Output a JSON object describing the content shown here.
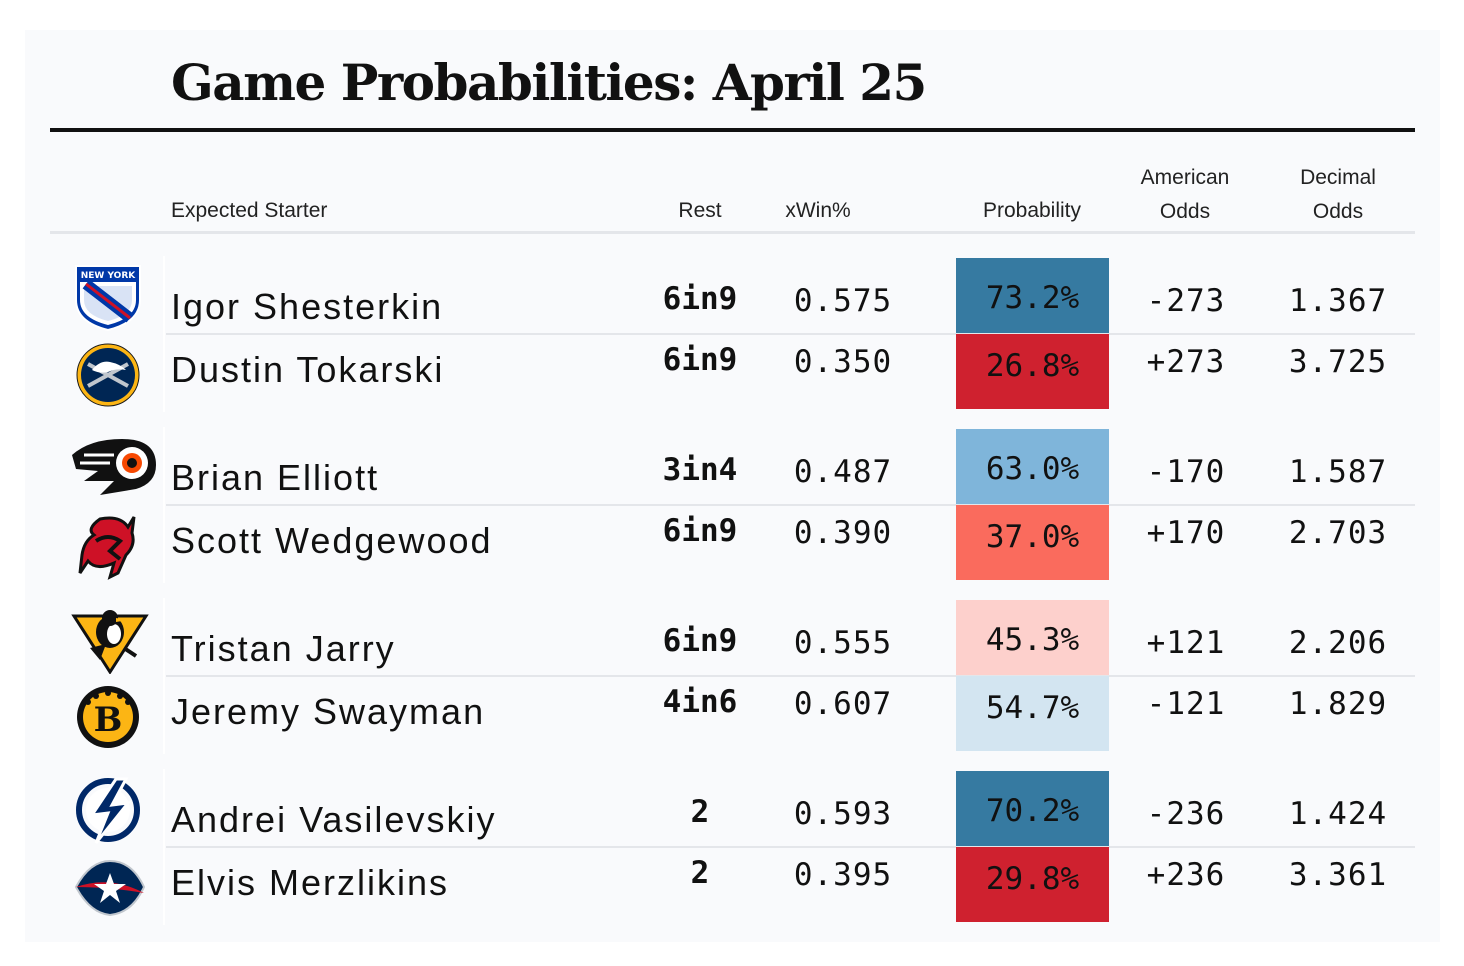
{
  "title": "Game Probabilities: April 25",
  "columns": {
    "starter": "Expected Starter",
    "rest": "Rest",
    "xwin": "xWin%",
    "probability": "Probability",
    "american_1": "American",
    "american_2": "Odds",
    "decimal_1": "Decimal",
    "decimal_2": "Odds"
  },
  "chart_data": {
    "type": "table",
    "games": [
      {
        "rows": [
          {
            "logo": "rangers-logo-icon",
            "name": "Igor Shesterkin",
            "rest": "6in9",
            "xwin": "0.575",
            "probability": "73.2%",
            "probability_value": 0.732,
            "american": "-273",
            "decimal": "1.367",
            "color": "#367aa1",
            "text_color": "#111111"
          },
          {
            "logo": "sabres-logo-icon",
            "name": "Dustin Tokarski",
            "rest": "6in9",
            "xwin": "0.350",
            "probability": "26.8%",
            "probability_value": 0.268,
            "american": "+273",
            "decimal": "3.725",
            "color": "#cf212f",
            "text_color": "#111111"
          }
        ]
      },
      {
        "rows": [
          {
            "logo": "flyers-logo-icon",
            "name": "Brian Elliott",
            "rest": "3in4",
            "xwin": "0.487",
            "probability": "63.0%",
            "probability_value": 0.63,
            "american": "-170",
            "decimal": "1.587",
            "color": "#7fb5da",
            "text_color": "#111111"
          },
          {
            "logo": "devils-logo-icon",
            "name": "Scott Wedgewood",
            "rest": "6in9",
            "xwin": "0.390",
            "probability": "37.0%",
            "probability_value": 0.37,
            "american": "+170",
            "decimal": "2.703",
            "color": "#fa6b5d",
            "text_color": "#111111"
          }
        ]
      },
      {
        "rows": [
          {
            "logo": "penguins-logo-icon",
            "name": "Tristan Jarry",
            "rest": "6in9",
            "xwin": "0.555",
            "probability": "45.3%",
            "probability_value": 0.453,
            "american": "+121",
            "decimal": "2.206",
            "color": "#fdd0cc",
            "text_color": "#111111"
          },
          {
            "logo": "bruins-logo-icon",
            "name": "Jeremy Swayman",
            "rest": "4in6",
            "xwin": "0.607",
            "probability": "54.7%",
            "probability_value": 0.547,
            "american": "-121",
            "decimal": "1.829",
            "color": "#d3e5f1",
            "text_color": "#111111"
          }
        ]
      },
      {
        "rows": [
          {
            "logo": "lightning-logo-icon",
            "name": "Andrei Vasilevskiy",
            "rest": "2",
            "xwin": "0.593",
            "probability": "70.2%",
            "probability_value": 0.702,
            "american": "-236",
            "decimal": "1.424",
            "color": "#367aa1",
            "text_color": "#111111"
          },
          {
            "logo": "blue-jackets-logo-icon",
            "name": "Elvis Merzlikins",
            "rest": "2",
            "xwin": "0.395",
            "probability": "29.8%",
            "probability_value": 0.298,
            "american": "+236",
            "decimal": "3.361",
            "color": "#cf212f",
            "text_color": "#111111"
          }
        ]
      }
    ]
  }
}
